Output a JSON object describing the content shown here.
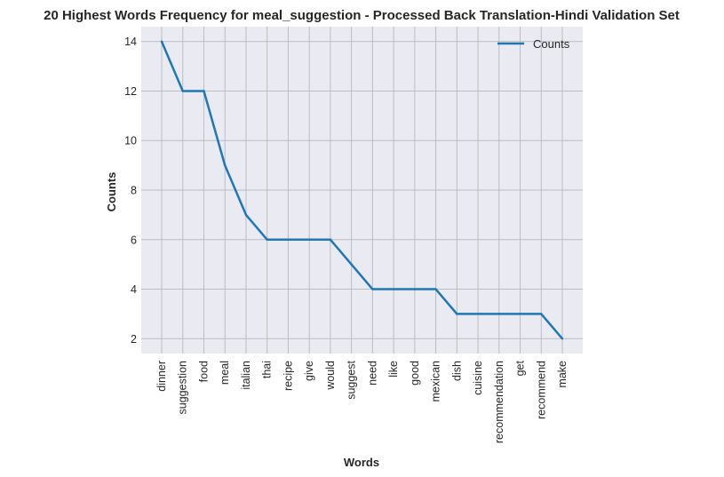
{
  "chart_data": {
    "type": "line",
    "title": "20 Highest Words Frequency for meal_suggestion - Processed Back Translation-Hindi Validation Set",
    "xlabel": "Words",
    "ylabel": "Counts",
    "categories": [
      "dinner",
      "suggestion",
      "food",
      "meal",
      "italian",
      "thai",
      "recipe",
      "give",
      "would",
      "suggest",
      "need",
      "like",
      "good",
      "mexican",
      "dish",
      "cuisine",
      "recommendation",
      "get",
      "recommend",
      "make"
    ],
    "series": [
      {
        "name": "Counts",
        "values": [
          14,
          12,
          12,
          9,
          7,
          6,
          6,
          6,
          6,
          5,
          4,
          4,
          4,
          4,
          3,
          3,
          3,
          3,
          3,
          2
        ],
        "color": "#1f77b4"
      }
    ],
    "ylim": [
      1.4,
      14.6
    ],
    "yticks": [
      2,
      4,
      6,
      8,
      10,
      12,
      14
    ],
    "grid": true,
    "legend_position": "top-right",
    "background": "#eaeaf2",
    "grid_color": "#bdbdbd"
  }
}
